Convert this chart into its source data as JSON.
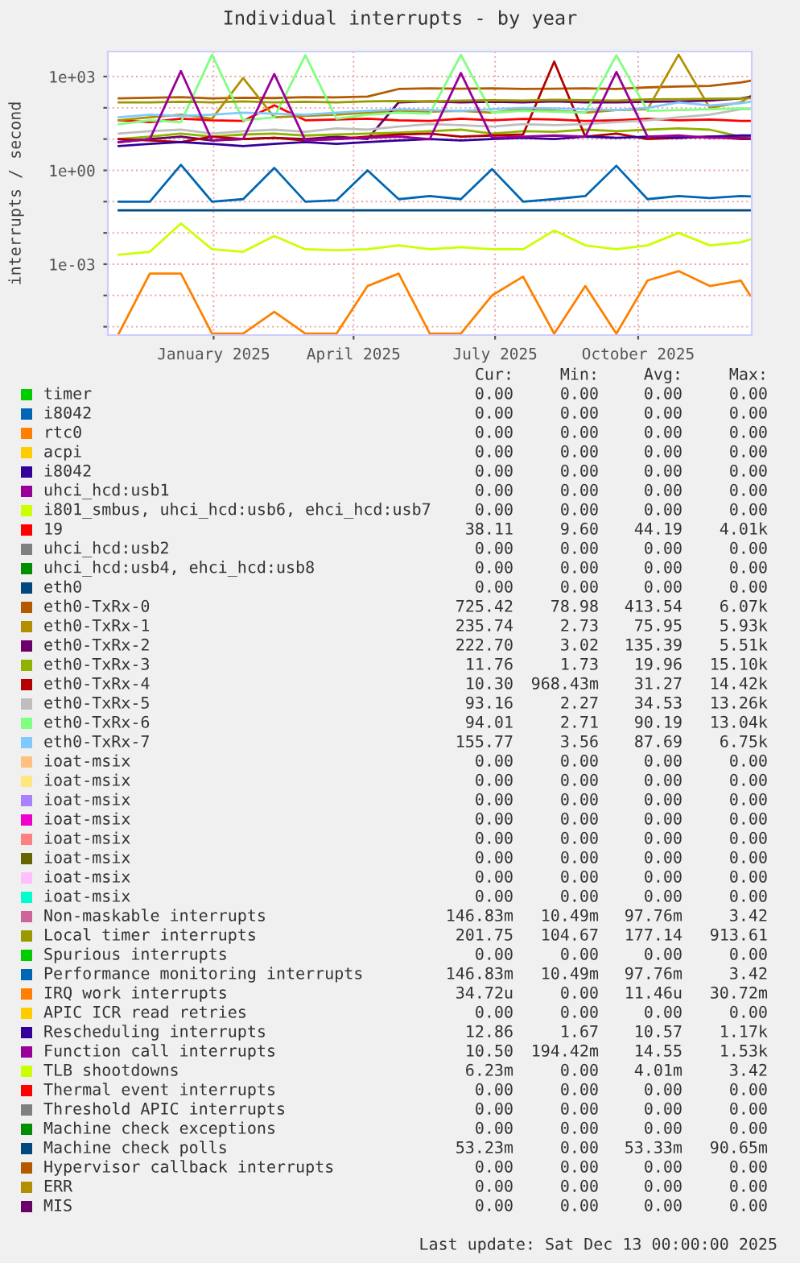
{
  "chart_data": {
    "type": "line",
    "title": "Individual interrupts - by year",
    "ylabel": "interrupts / second",
    "log": "y",
    "grid": true,
    "legend": "bottom",
    "x": [
      "2024-11-01",
      "2024-11-21",
      "2024-12-11",
      "2024-12-31",
      "2025-01-20",
      "2025-02-09",
      "2025-03-01",
      "2025-03-21",
      "2025-04-10",
      "2025-04-30",
      "2025-05-20",
      "2025-06-09",
      "2025-06-29",
      "2025-07-19",
      "2025-08-08",
      "2025-08-28",
      "2025-09-17",
      "2025-10-07",
      "2025-10-27",
      "2025-11-16",
      "2025-12-06",
      "2025-12-12"
    ],
    "xlim": [
      "2024-10-25",
      "2025-12-13"
    ],
    "xticks": [
      {
        "value": "2025-01-01",
        "label": "January 2025"
      },
      {
        "value": "2025-04-01",
        "label": "April 2025"
      },
      {
        "value": "2025-07-01",
        "label": "July 2025"
      },
      {
        "value": "2025-10-01",
        "label": "October 2025"
      }
    ],
    "ylim": [
      5.4e-06,
      6300
    ],
    "yticks": [
      {
        "value": 1e-05,
        "label": null
      },
      {
        "value": 0.0001,
        "label": null
      },
      {
        "value": 0.001,
        "label": "1e-03"
      },
      {
        "value": 0.01,
        "label": null
      },
      {
        "value": 0.1,
        "label": null
      },
      {
        "value": 1,
        "label": "1e+00"
      },
      {
        "value": 10,
        "label": null
      },
      {
        "value": 100,
        "label": null
      },
      {
        "value": 1000,
        "label": "1e+03"
      }
    ],
    "series": [
      {
        "name": "timer",
        "color": "#00cc00",
        "values": [
          null,
          null,
          null,
          null,
          null,
          null,
          null,
          null,
          null,
          null,
          null,
          null,
          null,
          null,
          null,
          null,
          null,
          null,
          null,
          null,
          null,
          null
        ]
      },
      {
        "name": "i8042",
        "color": "#0066b3",
        "values": [
          null,
          null,
          null,
          null,
          null,
          null,
          null,
          null,
          null,
          null,
          null,
          null,
          null,
          null,
          null,
          null,
          null,
          null,
          null,
          null,
          null,
          null
        ]
      },
      {
        "name": "rtc0",
        "color": "#ff8000",
        "values": [
          null,
          null,
          null,
          null,
          null,
          null,
          null,
          null,
          null,
          null,
          null,
          null,
          null,
          null,
          null,
          null,
          null,
          null,
          null,
          null,
          null,
          null
        ]
      },
      {
        "name": "acpi",
        "color": "#ffcc00",
        "values": [
          null,
          null,
          null,
          null,
          null,
          null,
          null,
          null,
          null,
          null,
          null,
          null,
          null,
          null,
          null,
          null,
          null,
          null,
          null,
          null,
          null,
          null
        ]
      },
      {
        "name": "i8042",
        "color": "#330099",
        "values": [
          null,
          null,
          null,
          null,
          null,
          null,
          null,
          null,
          null,
          null,
          null,
          null,
          null,
          null,
          null,
          null,
          null,
          null,
          null,
          null,
          null,
          null
        ]
      },
      {
        "name": "uhci_hcd:usb1",
        "color": "#990099",
        "values": [
          null,
          null,
          null,
          null,
          null,
          null,
          null,
          null,
          null,
          null,
          null,
          null,
          null,
          null,
          null,
          null,
          null,
          null,
          null,
          null,
          null,
          null
        ]
      },
      {
        "name": "i801_smbus, uhci_hcd:usb6, ehci_hcd:usb7",
        "color": "#ccff00",
        "values": [
          null,
          null,
          null,
          null,
          null,
          null,
          null,
          null,
          null,
          null,
          null,
          null,
          null,
          null,
          null,
          null,
          null,
          null,
          null,
          null,
          null,
          null
        ]
      },
      {
        "name": "19",
        "color": "#ff0000",
        "values": [
          40,
          35,
          45,
          40,
          38,
          120,
          40,
          42,
          45,
          40,
          38,
          45,
          40,
          44,
          42,
          38,
          40,
          45,
          40,
          42,
          38,
          38
        ]
      },
      {
        "name": "uhci_hcd:usb2",
        "color": "#808080",
        "values": [
          null,
          null,
          null,
          null,
          null,
          null,
          null,
          null,
          null,
          null,
          null,
          null,
          null,
          null,
          null,
          null,
          null,
          null,
          null,
          null,
          null,
          null
        ]
      },
      {
        "name": "uhci_hcd:usb4, ehci_hcd:usb8",
        "color": "#008f00",
        "values": [
          null,
          null,
          null,
          null,
          null,
          null,
          null,
          null,
          null,
          null,
          null,
          null,
          null,
          null,
          null,
          null,
          null,
          null,
          null,
          null,
          null,
          null
        ]
      },
      {
        "name": "eth0",
        "color": "#00487d",
        "values": [
          null,
          null,
          null,
          null,
          null,
          null,
          null,
          null,
          null,
          null,
          null,
          null,
          null,
          null,
          null,
          null,
          null,
          null,
          null,
          null,
          null,
          null
        ]
      },
      {
        "name": "eth0-TxRx-0",
        "color": "#b35a00",
        "values": [
          200,
          210,
          220,
          200,
          210,
          205,
          220,
          215,
          230,
          400,
          420,
          410,
          420,
          400,
          410,
          420,
          400,
          450,
          480,
          500,
          650,
          725
        ]
      },
      {
        "name": "eth0-TxRx-1",
        "color": "#b38f00",
        "values": [
          40,
          50,
          60,
          45,
          900,
          50,
          55,
          60,
          70,
          80,
          75,
          80,
          70,
          90,
          80,
          70,
          85,
          90,
          5000,
          100,
          150,
          236
        ]
      },
      {
        "name": "eth0-TxRx-2",
        "color": "#6b006b",
        "values": [
          8,
          10,
          12,
          9,
          10,
          11,
          10,
          12,
          10,
          150,
          160,
          150,
          155,
          150,
          160,
          150,
          150,
          155,
          160,
          170,
          200,
          223
        ]
      },
      {
        "name": "eth0-TxRx-3",
        "color": "#8fb300",
        "values": [
          10,
          12,
          15,
          12,
          14,
          15,
          13,
          14,
          15,
          16,
          18,
          20,
          15,
          18,
          17,
          20,
          18,
          20,
          22,
          20,
          12,
          12
        ]
      },
      {
        "name": "eth0-TxRx-4",
        "color": "#b30000",
        "values": [
          10,
          9,
          8,
          12,
          10,
          11,
          9,
          10,
          12,
          14,
          15,
          12,
          13,
          14,
          3000,
          12,
          15,
          10,
          11,
          12,
          10,
          10
        ]
      },
      {
        "name": "eth0-TxRx-5",
        "color": "#bebebe",
        "values": [
          15,
          18,
          20,
          15,
          18,
          20,
          17,
          22,
          20,
          25,
          30,
          28,
          25,
          30,
          28,
          30,
          35,
          40,
          50,
          60,
          90,
          93
        ]
      },
      {
        "name": "eth0-TxRx-6",
        "color": "#80ff80",
        "values": [
          30,
          40,
          35,
          5000,
          40,
          50,
          4800,
          45,
          60,
          70,
          65,
          4900,
          70,
          80,
          75,
          70,
          4800,
          80,
          85,
          90,
          95,
          94
        ]
      },
      {
        "name": "eth0-TxRx-7",
        "color": "#80c9ff",
        "values": [
          50,
          60,
          55,
          60,
          70,
          65,
          60,
          70,
          80,
          90,
          85,
          80,
          90,
          100,
          95,
          90,
          85,
          100,
          150,
          120,
          140,
          156
        ]
      },
      {
        "name": "ioat-msix",
        "color": "#ffc080",
        "values": [
          null,
          null,
          null,
          null,
          null,
          null,
          null,
          null,
          null,
          null,
          null,
          null,
          null,
          null,
          null,
          null,
          null,
          null,
          null,
          null,
          null,
          null
        ]
      },
      {
        "name": "ioat-msix",
        "color": "#ffe680",
        "values": [
          null,
          null,
          null,
          null,
          null,
          null,
          null,
          null,
          null,
          null,
          null,
          null,
          null,
          null,
          null,
          null,
          null,
          null,
          null,
          null,
          null,
          null
        ]
      },
      {
        "name": "ioat-msix",
        "color": "#aa80ff",
        "values": [
          null,
          null,
          null,
          null,
          null,
          null,
          null,
          null,
          null,
          null,
          null,
          null,
          null,
          null,
          null,
          null,
          null,
          null,
          null,
          null,
          null,
          null
        ]
      },
      {
        "name": "ioat-msix",
        "color": "#ee00cc",
        "values": [
          null,
          null,
          null,
          null,
          null,
          null,
          null,
          null,
          null,
          null,
          null,
          null,
          null,
          null,
          null,
          null,
          null,
          null,
          null,
          null,
          null,
          null
        ]
      },
      {
        "name": "ioat-msix",
        "color": "#ff8080",
        "values": [
          null,
          null,
          null,
          null,
          null,
          null,
          null,
          null,
          null,
          null,
          null,
          null,
          null,
          null,
          null,
          null,
          null,
          null,
          null,
          null,
          null,
          null
        ]
      },
      {
        "name": "ioat-msix",
        "color": "#666600",
        "values": [
          null,
          null,
          null,
          null,
          null,
          null,
          null,
          null,
          null,
          null,
          null,
          null,
          null,
          null,
          null,
          null,
          null,
          null,
          null,
          null,
          null,
          null
        ]
      },
      {
        "name": "ioat-msix",
        "color": "#ffbfff",
        "values": [
          null,
          null,
          null,
          null,
          null,
          null,
          null,
          null,
          null,
          null,
          null,
          null,
          null,
          null,
          null,
          null,
          null,
          null,
          null,
          null,
          null,
          null
        ]
      },
      {
        "name": "ioat-msix",
        "color": "#00ffcc",
        "values": [
          null,
          null,
          null,
          null,
          null,
          null,
          null,
          null,
          null,
          null,
          null,
          null,
          null,
          null,
          null,
          null,
          null,
          null,
          null,
          null,
          null,
          null
        ]
      },
      {
        "name": "Non-maskable interrupts",
        "color": "#cc6699",
        "values": [
          null,
          null,
          null,
          null,
          null,
          null,
          null,
          null,
          null,
          null,
          null,
          null,
          null,
          null,
          null,
          null,
          null,
          null,
          null,
          null,
          null,
          null
        ]
      },
      {
        "name": "Local timer interrupts",
        "color": "#999900",
        "values": [
          150,
          150,
          155,
          150,
          160,
          150,
          155,
          150,
          160,
          165,
          160,
          170,
          175,
          170,
          180,
          175,
          170,
          185,
          190,
          195,
          200,
          202
        ]
      },
      {
        "name": "Spurious interrupts",
        "color": "#00cc00",
        "values": [
          null,
          null,
          null,
          null,
          null,
          null,
          null,
          null,
          null,
          null,
          null,
          null,
          null,
          null,
          null,
          null,
          null,
          null,
          null,
          null,
          null,
          null
        ]
      },
      {
        "name": "Performance monitoring interrupts",
        "color": "#0066b3",
        "values": [
          0.1,
          0.1,
          1.5,
          0.1,
          0.12,
          1.2,
          0.1,
          0.11,
          1.0,
          0.12,
          0.15,
          0.12,
          1.1,
          0.1,
          0.12,
          0.15,
          1.4,
          0.12,
          0.15,
          0.13,
          0.15,
          0.147
        ]
      },
      {
        "name": "IRQ work interrupts",
        "color": "#ff8000",
        "values": [
          6e-06,
          0.0005,
          0.0005,
          6e-06,
          6e-06,
          3e-05,
          6e-06,
          6e-06,
          0.0002,
          0.0005,
          6e-06,
          6e-06,
          0.0001,
          0.0004,
          6e-06,
          0.0002,
          6e-06,
          0.0003,
          0.0006,
          0.0002,
          0.0003,
          0.0001
        ]
      },
      {
        "name": "APIC ICR read retries",
        "color": "#ffcc00",
        "values": [
          null,
          null,
          null,
          null,
          null,
          null,
          null,
          null,
          null,
          null,
          null,
          null,
          null,
          null,
          null,
          null,
          null,
          null,
          null,
          null,
          null,
          null
        ]
      },
      {
        "name": "Rescheduling interrupts",
        "color": "#330099",
        "values": [
          6,
          7,
          8,
          7,
          6,
          7,
          8,
          7,
          8,
          9,
          10,
          9,
          10,
          11,
          10,
          12,
          11,
          12,
          11,
          12,
          13,
          13
        ]
      },
      {
        "name": "Function call interrupts",
        "color": "#990099",
        "values": [
          8,
          10,
          1500,
          9,
          10,
          1200,
          9,
          10,
          11,
          12,
          10,
          1300,
          11,
          12,
          13,
          12,
          1400,
          12,
          13,
          11,
          11,
          10.5
        ]
      },
      {
        "name": "TLB shootdowns",
        "color": "#ccff00",
        "values": [
          0.002,
          0.0025,
          0.02,
          0.003,
          0.0025,
          0.008,
          0.003,
          0.0028,
          0.003,
          0.004,
          0.003,
          0.0035,
          0.003,
          0.003,
          0.012,
          0.004,
          0.003,
          0.004,
          0.01,
          0.004,
          0.005,
          0.0062
        ]
      },
      {
        "name": "Thermal event interrupts",
        "color": "#ff0000",
        "values": [
          null,
          null,
          null,
          null,
          null,
          null,
          null,
          null,
          null,
          null,
          null,
          null,
          null,
          null,
          null,
          null,
          null,
          null,
          null,
          null,
          null,
          null
        ]
      },
      {
        "name": "Threshold APIC interrupts",
        "color": "#808080",
        "values": [
          null,
          null,
          null,
          null,
          null,
          null,
          null,
          null,
          null,
          null,
          null,
          null,
          null,
          null,
          null,
          null,
          null,
          null,
          null,
          null,
          null,
          null
        ]
      },
      {
        "name": "Machine check exceptions",
        "color": "#008f00",
        "values": [
          null,
          null,
          null,
          null,
          null,
          null,
          null,
          null,
          null,
          null,
          null,
          null,
          null,
          null,
          null,
          null,
          null,
          null,
          null,
          null,
          null,
          null
        ]
      },
      {
        "name": "Machine check polls",
        "color": "#00487d",
        "values": [
          0.053,
          0.053,
          0.053,
          0.053,
          0.053,
          0.053,
          0.053,
          0.053,
          0.053,
          0.053,
          0.053,
          0.053,
          0.053,
          0.053,
          0.053,
          0.053,
          0.053,
          0.053,
          0.053,
          0.053,
          0.053,
          0.053
        ]
      },
      {
        "name": "Hypervisor callback interrupts",
        "color": "#b35a00",
        "values": [
          null,
          null,
          null,
          null,
          null,
          null,
          null,
          null,
          null,
          null,
          null,
          null,
          null,
          null,
          null,
          null,
          null,
          null,
          null,
          null,
          null,
          null
        ]
      },
      {
        "name": "ERR",
        "color": "#b38f00",
        "values": [
          null,
          null,
          null,
          null,
          null,
          null,
          null,
          null,
          null,
          null,
          null,
          null,
          null,
          null,
          null,
          null,
          null,
          null,
          null,
          null,
          null,
          null
        ]
      },
      {
        "name": "MIS",
        "color": "#6b006b",
        "values": [
          null,
          null,
          null,
          null,
          null,
          null,
          null,
          null,
          null,
          null,
          null,
          null,
          null,
          null,
          null,
          null,
          null,
          null,
          null,
          null,
          null,
          null
        ]
      }
    ],
    "annotations": [
      "Cur:",
      "Min:",
      "Avg:",
      "Max:",
      "0.00 0.00 0.00 0.00",
      "0.00 0.00 0.00 0.00",
      "0.00 0.00 0.00 0.00",
      "0.00 0.00 0.00 0.00",
      "0.00 0.00 0.00 0.00",
      "0.00 0.00 0.00 0.00",
      "0.00 0.00 0.00 0.00",
      "38.11 9.60 44.19 4.01k",
      "0.00 0.00 0.00 0.00",
      "0.00 0.00 0.00 0.00",
      "0.00 0.00 0.00 0.00",
      "725.42 78.98 413.54 6.07k",
      "235.74 2.73 75.95 5.93k",
      "222.70 3.02 135.39 5.51k",
      "11.76 1.73 19.96 15.10k",
      "10.30 968.43m 31.27 14.42k",
      "93.16 2.27 34.53 13.26k",
      "94.01 2.71 90.19 13.04k",
      "155.77 3.56 87.69 6.75k",
      "0.00 0.00 0.00 0.00",
      "0.00 0.00 0.00 0.00",
      "0.00 0.00 0.00 0.00",
      "0.00 0.00 0.00 0.00",
      "0.00 0.00 0.00 0.00",
      "0.00 0.00 0.00 0.00",
      "0.00 0.00 0.00 0.00",
      "0.00 0.00 0.00 0.00",
      "146.83m 10.49m 97.76m 3.42",
      "201.75 104.67 177.14 913.61",
      "0.00 0.00 0.00 0.00",
      "146.83m 10.49m 97.76m 3.42",
      "34.72u 0.00 11.46u 30.72m",
      "0.00 0.00 0.00 0.00",
      "12.86 1.67 10.57 1.17k",
      "10.50 194.42m 14.55 1.53k",
      "6.23m 0.00 4.01m 3.42",
      "0.00 0.00 0.00 0.00",
      "0.00 0.00 0.00 0.00",
      "0.00 0.00 0.00 0.00",
      "53.23m 0.00 53.33m 90.65m",
      "0.00 0.00 0.00 0.00",
      "0.00 0.00 0.00 0.00",
      "0.00 0.00 0.00 0.00",
      "Last update: Sat Dec 13 00:00:00 2025"
    ]
  }
}
